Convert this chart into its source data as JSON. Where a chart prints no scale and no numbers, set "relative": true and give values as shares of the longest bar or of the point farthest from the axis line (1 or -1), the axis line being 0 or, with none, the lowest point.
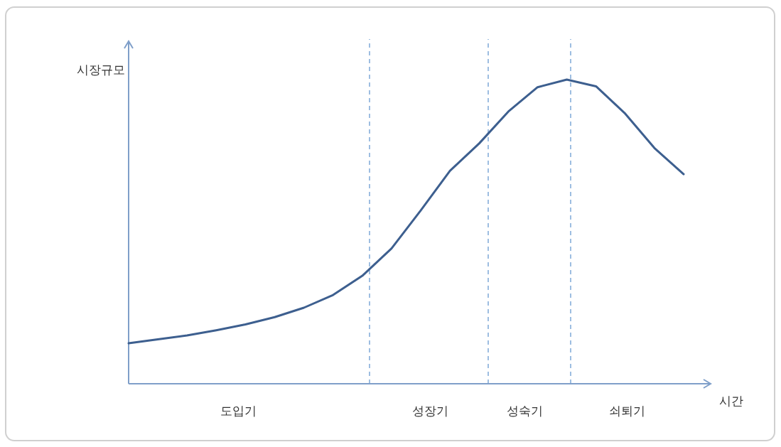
{
  "chart_data": {
    "type": "line",
    "relative": true,
    "xlabel": "시간",
    "ylabel": "시장규모",
    "line_style": "solid",
    "categories": [
      null,
      null,
      null,
      null,
      null,
      null,
      null,
      null,
      null,
      null,
      null,
      null,
      null,
      null,
      null,
      null,
      null,
      null,
      null,
      null
    ],
    "series": [
      {
        "color": "#3d5f8f",
        "values": [
          0.133,
          0.146,
          0.159,
          0.176,
          0.195,
          0.219,
          0.25,
          0.292,
          0.355,
          0.445,
          0.57,
          0.7,
          0.79,
          0.895,
          0.975,
          1.0,
          0.978,
          0.888,
          0.775,
          0.689
        ]
      }
    ],
    "annotations": [
      "도입기",
      "성장기",
      "성숙기",
      "쇠퇴기"
    ]
  }
}
